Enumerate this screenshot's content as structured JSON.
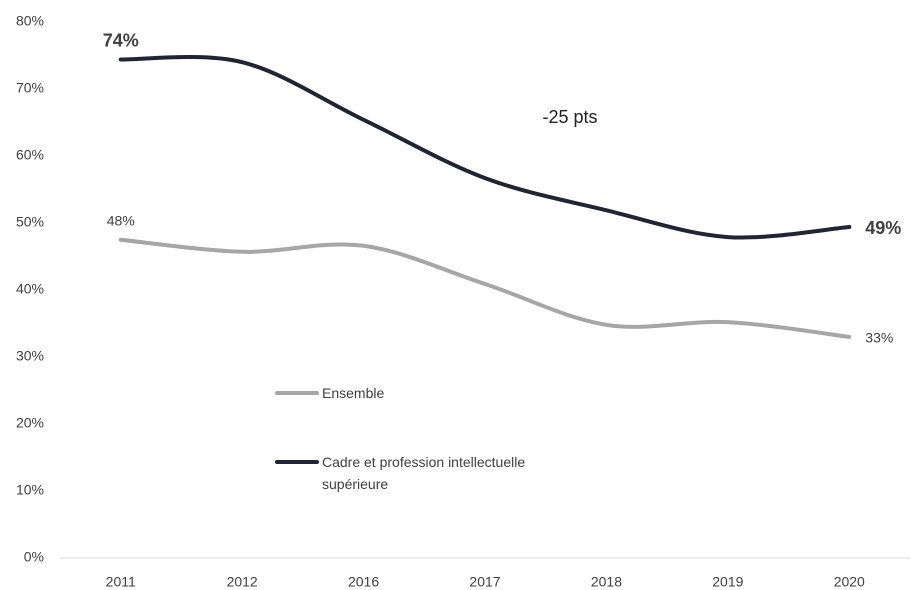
{
  "chart_data": {
    "type": "line",
    "categories": [
      "2011",
      "2012",
      "2016",
      "2017",
      "2018",
      "2019",
      "2020"
    ],
    "series": [
      {
        "name": "Ensemble",
        "color": "#a6a6a6",
        "values": [
          47.5,
          45.7,
          46.6,
          40.9,
          34.8,
          35.2,
          33.0
        ],
        "value_labels": [
          "48%",
          null,
          null,
          null,
          null,
          null,
          "33%"
        ]
      },
      {
        "name": "Cadre et profession intellectuelle supérieure",
        "color": "#1f2535",
        "values": [
          74.4,
          74.0,
          65.4,
          56.7,
          51.9,
          47.9,
          49.4
        ],
        "value_labels": [
          "74%",
          null,
          null,
          null,
          null,
          null,
          "49%"
        ]
      }
    ],
    "ylim": [
      0,
      80
    ],
    "yticks": [
      {
        "value": 0,
        "label": "0%"
      },
      {
        "value": 10,
        "label": "10%"
      },
      {
        "value": 20,
        "label": "20%"
      },
      {
        "value": 30,
        "label": "30%"
      },
      {
        "value": 40,
        "label": "40%"
      },
      {
        "value": 50,
        "label": "50%"
      },
      {
        "value": 60,
        "label": "60%"
      },
      {
        "value": 70,
        "label": "70%"
      },
      {
        "value": 80,
        "label": "80%"
      }
    ],
    "annotation": "-25 pts",
    "grid": false
  }
}
